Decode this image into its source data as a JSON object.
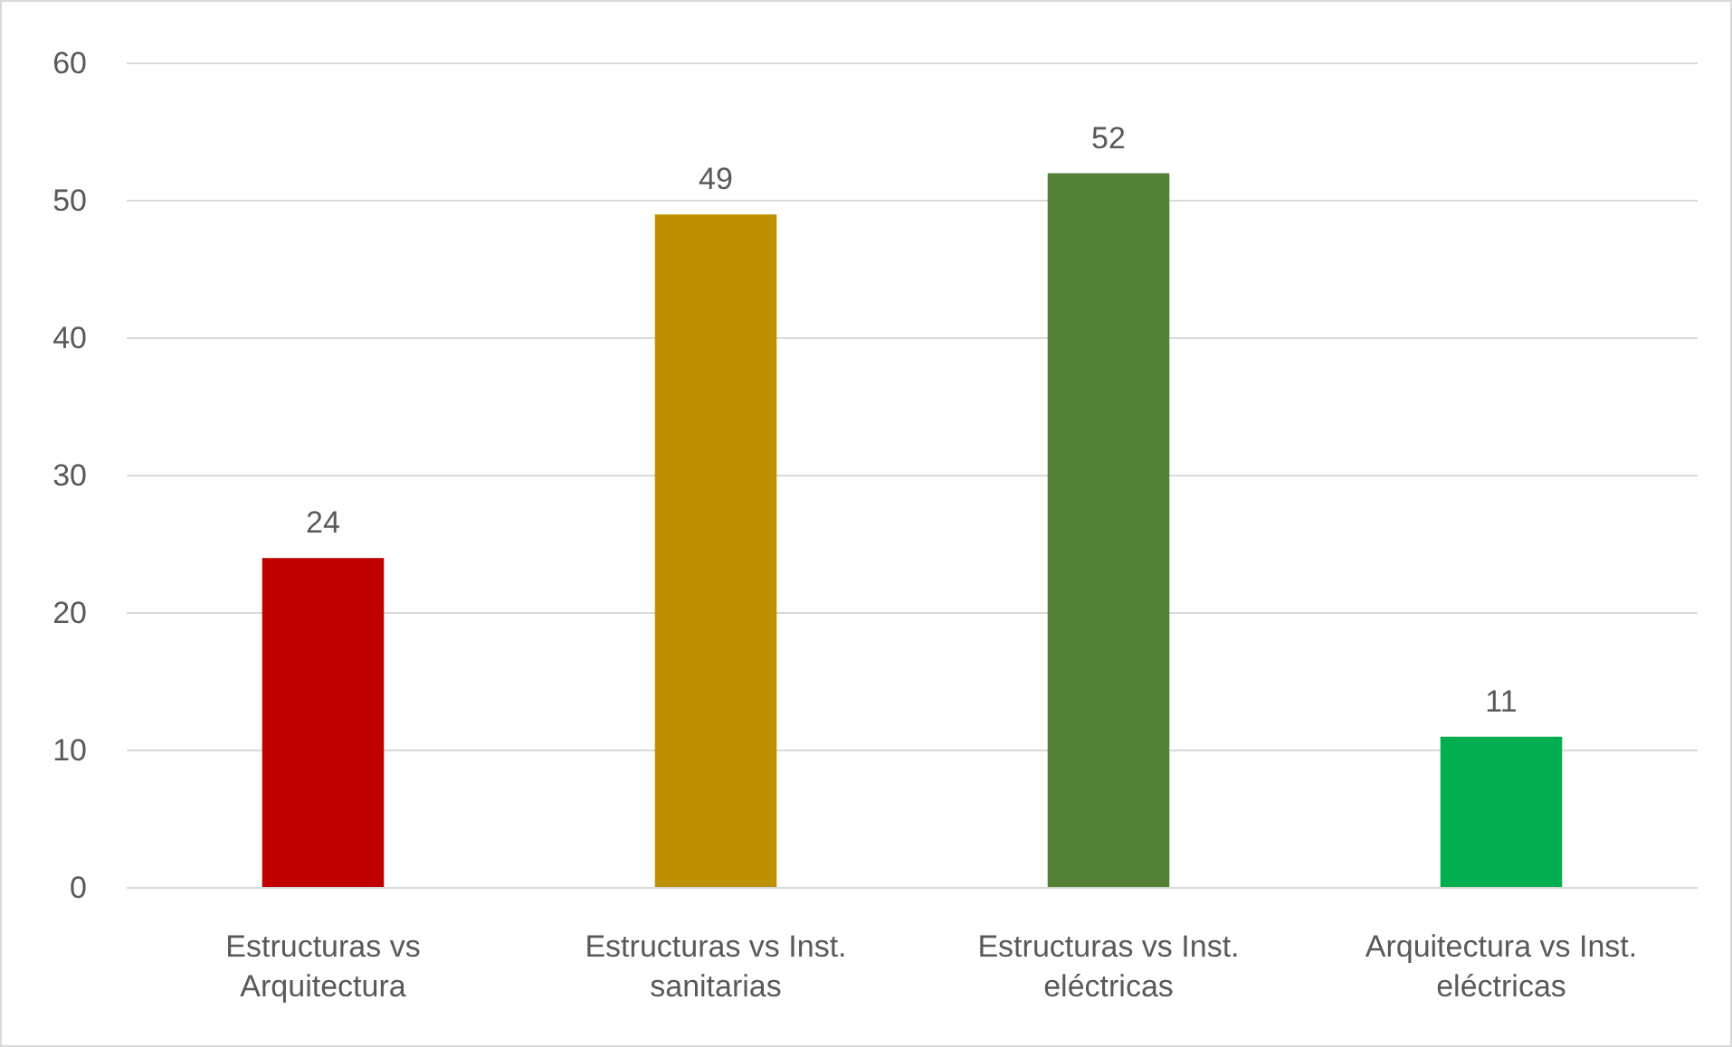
{
  "chart_data": {
    "type": "bar",
    "categories": [
      "Estructuras vs Arquitectura",
      "Estructuras vs Inst. sanitarias",
      "Estructuras vs Inst. eléctricas",
      "Arquitectura vs Inst. eléctricas"
    ],
    "values": [
      24,
      49,
      52,
      11
    ],
    "colors": [
      "#c00000",
      "#bf9000",
      "#538135",
      "#00b050"
    ],
    "ylim": [
      0,
      60
    ],
    "yticks": [
      0,
      10,
      20,
      30,
      40,
      50,
      60
    ],
    "grid": "y",
    "data_labels": true
  }
}
